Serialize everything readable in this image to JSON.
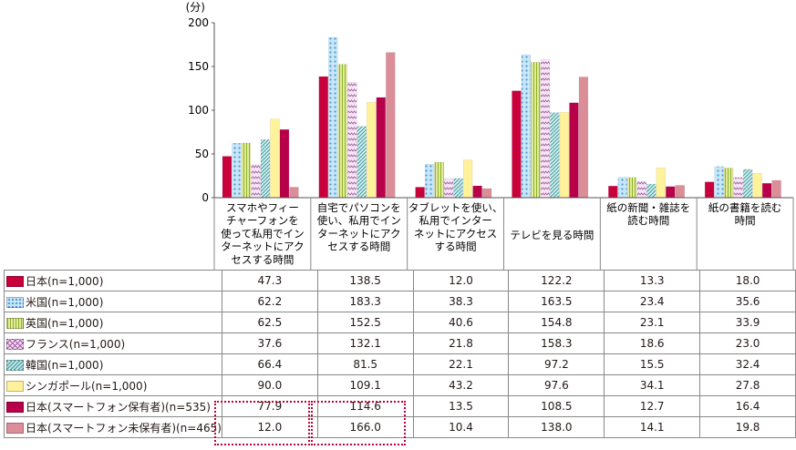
{
  "chart_data": {
    "type": "bar",
    "unit_label": "(分)",
    "ylim": [
      0,
      200
    ],
    "yticks": [
      "0",
      "50",
      "100",
      "150",
      "200"
    ],
    "categories": [
      "スマホやフィーチャーフォンを使って私用でインターネットにアクセスする時間",
      "自宅でパソコンを使い、私用でインターネットにアクセスする時間",
      "タブレットを使い、私用でインターネットにアクセスする時間",
      "テレビを見る時間",
      "紙の新聞・雑誌を読む時間",
      "紙の書籍を読む時間"
    ],
    "category_lines": [
      [
        "スマホやフィー",
        "チャーフォンを",
        "使って私用でイン",
        "ターネットにアク",
        "セスする時間"
      ],
      [
        "自宅でパソコンを",
        "使い、私用でイン",
        "ターネットにアク",
        "セスする時間"
      ],
      [
        "タブレットを使い、",
        "私用でインター",
        "ネットにアクセス",
        "する時間"
      ],
      [
        "テレビを見る時間"
      ],
      [
        "紙の新聞・雑誌を",
        "読む時間"
      ],
      [
        "紙の書籍を読む",
        "時間"
      ]
    ],
    "series": [
      {
        "name": "日本(n=1,000)",
        "color": "#c8003c",
        "pattern": "solid",
        "values": [
          47.3,
          138.5,
          12.0,
          122.2,
          13.3,
          18.0
        ],
        "labels": [
          "47.3",
          "138.5",
          "12.0",
          "122.2",
          "13.3",
          "18.0"
        ]
      },
      {
        "name": "米国(n=1,000)",
        "color": "#c8e6f8",
        "pattern": "dots",
        "values": [
          62.2,
          183.3,
          38.3,
          163.5,
          23.4,
          35.6
        ],
        "labels": [
          "62.2",
          "183.3",
          "38.3",
          "163.5",
          "23.4",
          "35.6"
        ]
      },
      {
        "name": "英国(n=1,000)",
        "color": "#e2ec9e",
        "pattern": "vlines",
        "values": [
          62.5,
          152.5,
          40.6,
          154.8,
          23.1,
          33.9
        ],
        "labels": [
          "62.5",
          "152.5",
          "40.6",
          "154.8",
          "23.1",
          "33.9"
        ]
      },
      {
        "name": "フランス(n=1,000)",
        "color": "#f3d9ef",
        "pattern": "zigzag",
        "values": [
          37.6,
          132.1,
          21.8,
          158.3,
          18.6,
          23.0
        ],
        "labels": [
          "37.6",
          "132.1",
          "21.8",
          "158.3",
          "18.6",
          "23.0"
        ]
      },
      {
        "name": "韓国(n=1,000)",
        "color": "#bfe4e4",
        "pattern": "diag",
        "values": [
          66.4,
          81.5,
          22.1,
          97.2,
          15.5,
          32.4
        ],
        "labels": [
          "66.4",
          "81.5",
          "22.1",
          "97.2",
          "15.5",
          "32.4"
        ]
      },
      {
        "name": "シンガポール(n=1,000)",
        "color": "#fff29a",
        "pattern": "solid",
        "values": [
          90.0,
          109.1,
          43.2,
          97.6,
          34.1,
          27.8
        ],
        "labels": [
          "90.0",
          "109.1",
          "43.2",
          "97.6",
          "34.1",
          "27.8"
        ]
      },
      {
        "name": "日本(スマートフォン保有者)(n=535)",
        "color": "#b8004a",
        "pattern": "solid",
        "values": [
          77.9,
          114.6,
          13.5,
          108.5,
          12.7,
          16.4
        ],
        "labels": [
          "77.9",
          "114.6",
          "13.5",
          "108.5",
          "12.7",
          "16.4"
        ]
      },
      {
        "name": "日本(スマートフォン未保有者)(n=465)",
        "color": "#dc8e98",
        "pattern": "solid",
        "values": [
          12.0,
          166.0,
          10.4,
          138.0,
          14.1,
          19.8
        ],
        "labels": [
          "12.0",
          "166.0",
          "10.4",
          "138.0",
          "14.1",
          "19.8"
        ]
      }
    ]
  }
}
